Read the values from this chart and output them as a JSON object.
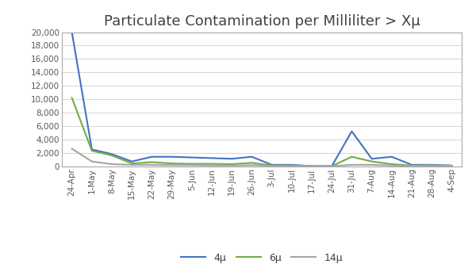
{
  "title": "Particulate Contamination per Milliliter > Xμ",
  "x_labels": [
    "24-Apr",
    "1-May",
    "8-May",
    "15-May",
    "22-May",
    "29-May",
    "5-Jun",
    "12-Jun",
    "19-Jun",
    "26-Jun",
    "3-Jul",
    "10-Jul",
    "17-Jul",
    "24-Jul",
    "31-Jul",
    "7-Aug",
    "14-Aug",
    "21-Aug",
    "28-Aug",
    "4-Sep"
  ],
  "series_4mu": [
    20000,
    2500,
    1800,
    700,
    1400,
    1400,
    1300,
    1200,
    1100,
    1400,
    200,
    200,
    0,
    0,
    5200,
    1100,
    1400,
    200,
    200,
    100
  ],
  "series_6mu": [
    10200,
    2300,
    1600,
    400,
    600,
    400,
    350,
    350,
    300,
    500,
    100,
    100,
    0,
    0,
    1400,
    700,
    300,
    100,
    100,
    50
  ],
  "series_14mu": [
    2600,
    700,
    300,
    200,
    200,
    150,
    150,
    100,
    100,
    150,
    50,
    50,
    0,
    0,
    200,
    200,
    100,
    50,
    100,
    50
  ],
  "color_4mu": "#4472C4",
  "color_6mu": "#70AD47",
  "color_14mu": "#A5A5A5",
  "legend_4mu": "4μ",
  "legend_6mu": "6μ",
  "legend_14mu": "14μ",
  "ylim": [
    0,
    20000
  ],
  "yticks": [
    0,
    2000,
    4000,
    6000,
    8000,
    10000,
    12000,
    14000,
    16000,
    18000,
    20000
  ],
  "background_color": "#ffffff",
  "grid_color": "#d9d9d9",
  "title_fontsize": 13,
  "axis_fontsize": 7.5,
  "legend_fontsize": 9,
  "line_width": 1.5,
  "border_color": "#aaaaaa",
  "outer_border_color": "#888888"
}
